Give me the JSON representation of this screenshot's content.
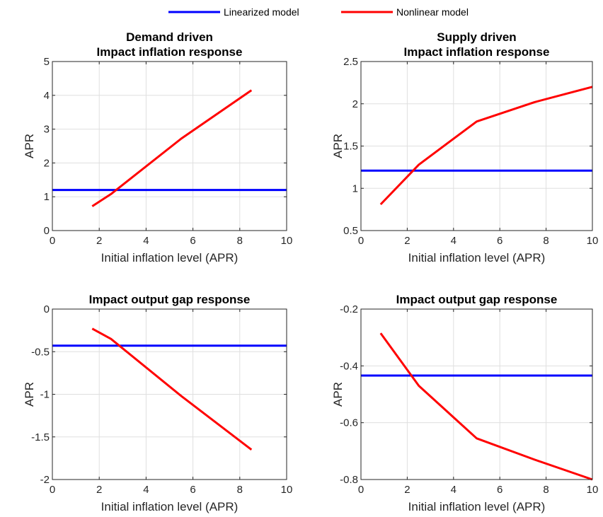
{
  "legend": {
    "items": [
      {
        "label": "Linearized model",
        "color": "#0000ff"
      },
      {
        "label": "Nonlinear model",
        "color": "#ff0000"
      }
    ]
  },
  "chart_data": [
    {
      "type": "line",
      "title": [
        "Demand driven",
        "Impact inflation response"
      ],
      "xlabel": "Initial inflation level (APR)",
      "ylabel": "APR",
      "xlim": [
        0,
        10
      ],
      "ylim": [
        0,
        5
      ],
      "xticks": [
        0,
        2,
        4,
        6,
        8,
        10
      ],
      "yticks": [
        0,
        1,
        2,
        3,
        4,
        5
      ],
      "grid": true,
      "series": [
        {
          "name": "Linearized model",
          "color": "#0000ff",
          "x": [
            0,
            10
          ],
          "y": [
            1.2,
            1.2
          ]
        },
        {
          "name": "Nonlinear model",
          "color": "#ff0000",
          "x": [
            1.7,
            2.5,
            5.5,
            8.5
          ],
          "y": [
            0.72,
            1.08,
            2.72,
            4.15
          ]
        }
      ]
    },
    {
      "type": "line",
      "title": [
        "Supply driven",
        "Impact inflation response"
      ],
      "xlabel": "Initial inflation level (APR)",
      "ylabel": "APR",
      "xlim": [
        0,
        10
      ],
      "ylim": [
        0.5,
        2.5
      ],
      "xticks": [
        0,
        2,
        4,
        6,
        8,
        10
      ],
      "yticks": [
        0.5,
        1,
        1.5,
        2,
        2.5
      ],
      "grid": true,
      "series": [
        {
          "name": "Linearized model",
          "color": "#0000ff",
          "x": [
            0,
            10
          ],
          "y": [
            1.21,
            1.21
          ]
        },
        {
          "name": "Nonlinear model",
          "color": "#ff0000",
          "x": [
            0.85,
            2.5,
            5.0,
            7.5,
            10.0
          ],
          "y": [
            0.81,
            1.28,
            1.79,
            2.02,
            2.2
          ]
        }
      ]
    },
    {
      "type": "line",
      "title": [
        "Impact output gap response"
      ],
      "xlabel": "Initial inflation level (APR)",
      "ylabel": "APR",
      "xlim": [
        0,
        10
      ],
      "ylim": [
        -2,
        0
      ],
      "xticks": [
        0,
        2,
        4,
        6,
        8,
        10
      ],
      "yticks": [
        -2,
        -1.5,
        -1,
        -0.5,
        0
      ],
      "grid": true,
      "series": [
        {
          "name": "Linearized model",
          "color": "#0000ff",
          "x": [
            0,
            10
          ],
          "y": [
            -0.43,
            -0.43
          ]
        },
        {
          "name": "Nonlinear model",
          "color": "#ff0000",
          "x": [
            1.7,
            2.5,
            5.5,
            8.5
          ],
          "y": [
            -0.23,
            -0.35,
            -1.02,
            -1.65
          ]
        }
      ]
    },
    {
      "type": "line",
      "title": [
        "Impact output gap response"
      ],
      "xlabel": "Initial inflation level (APR)",
      "ylabel": "APR",
      "xlim": [
        0,
        10
      ],
      "ylim": [
        -0.8,
        -0.2
      ],
      "xticks": [
        0,
        2,
        4,
        6,
        8,
        10
      ],
      "yticks": [
        -0.8,
        -0.6,
        -0.4,
        -0.2
      ],
      "grid": true,
      "series": [
        {
          "name": "Linearized model",
          "color": "#0000ff",
          "x": [
            0,
            10
          ],
          "y": [
            -0.434,
            -0.434
          ]
        },
        {
          "name": "Nonlinear model",
          "color": "#ff0000",
          "x": [
            0.85,
            2.5,
            5.0,
            7.5,
            10.0
          ],
          "y": [
            -0.285,
            -0.47,
            -0.655,
            -0.73,
            -0.8
          ]
        }
      ]
    }
  ]
}
